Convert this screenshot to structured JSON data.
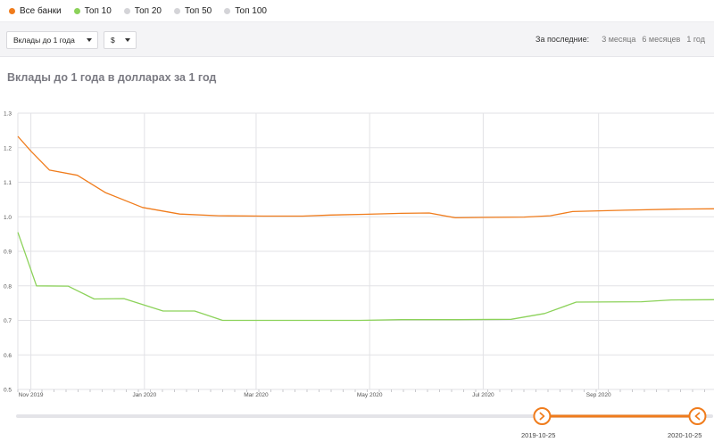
{
  "legend": [
    {
      "label": "Все банки",
      "color": "#f07c1c"
    },
    {
      "label": "Топ 10",
      "color": "#8cd25a"
    },
    {
      "label": "Топ 20",
      "color": "#d4d4d8"
    },
    {
      "label": "Топ 50",
      "color": "#d4d4d8"
    },
    {
      "label": "Топ 100",
      "color": "#d4d4d8"
    }
  ],
  "toolbar": {
    "deposit_select": "Вклады до 1 года",
    "currency_select": "$",
    "period_label": "За последние:",
    "period_options": [
      "3 месяца",
      "6 месяцев",
      "1 год"
    ]
  },
  "chart_title": "Вклады до 1 года в долларах за 1 год",
  "chart_data": {
    "type": "line",
    "title": "Вклады до 1 года в долларах за 1 год",
    "ylim": [
      0.5,
      1.3
    ],
    "y_ticks": [
      "1.3",
      "1.2",
      "1.1",
      "1.0",
      "0.9",
      "0.8",
      "0.7",
      "0.6",
      "0.5"
    ],
    "x_ticks": [
      "Nov 2019",
      "Jan 2020",
      "Mar 2020",
      "May 2020",
      "Jul 2020",
      "Sep 2020"
    ],
    "x_tick_dates": [
      "2019-11-01",
      "2020-01-01",
      "2020-03-01",
      "2020-05-01",
      "2020-07-01",
      "2020-09-01"
    ],
    "x_range": [
      "2019-10-25",
      "2020-11-02"
    ],
    "grid": true,
    "series": [
      {
        "name": "Все банки",
        "color": "#f07c1c",
        "points": [
          [
            "2019-10-25",
            1.233
          ],
          [
            "2019-11-01",
            1.19
          ],
          [
            "2019-11-11",
            1.135
          ],
          [
            "2019-11-26",
            1.12
          ],
          [
            "2019-12-11",
            1.07
          ],
          [
            "2019-12-31",
            1.027
          ],
          [
            "2020-01-20",
            1.008
          ],
          [
            "2020-02-10",
            1.003
          ],
          [
            "2020-03-05",
            1.002
          ],
          [
            "2020-03-26",
            1.002
          ],
          [
            "2020-04-10",
            1.005
          ],
          [
            "2020-04-28",
            1.007
          ],
          [
            "2020-05-18",
            1.01
          ],
          [
            "2020-06-02",
            1.011
          ],
          [
            "2020-06-16",
            0.997
          ],
          [
            "2020-07-01",
            0.998
          ],
          [
            "2020-07-23",
            0.999
          ],
          [
            "2020-08-06",
            1.003
          ],
          [
            "2020-08-18",
            1.015
          ],
          [
            "2020-09-15",
            1.019
          ],
          [
            "2020-10-12",
            1.022
          ],
          [
            "2020-11-02",
            1.023
          ]
        ]
      },
      {
        "name": "Топ 10",
        "color": "#8cd25a",
        "points": [
          [
            "2019-10-25",
            0.955
          ],
          [
            "2019-11-04",
            0.8
          ],
          [
            "2019-11-21",
            0.799
          ],
          [
            "2019-12-05",
            0.762
          ],
          [
            "2019-12-21",
            0.763
          ],
          [
            "2020-01-11",
            0.727
          ],
          [
            "2020-01-28",
            0.727
          ],
          [
            "2020-02-12",
            0.7
          ],
          [
            "2020-03-05",
            0.7
          ],
          [
            "2020-04-26",
            0.7
          ],
          [
            "2020-05-18",
            0.702
          ],
          [
            "2020-06-17",
            0.702
          ],
          [
            "2020-07-16",
            0.703
          ],
          [
            "2020-08-03",
            0.72
          ],
          [
            "2020-08-20",
            0.753
          ],
          [
            "2020-09-24",
            0.754
          ],
          [
            "2020-10-10",
            0.759
          ],
          [
            "2020-11-02",
            0.76
          ]
        ]
      }
    ]
  },
  "range_slider": {
    "start_label": "2019-10-25",
    "end_label": "2020-10-25",
    "start_fraction": 0.756,
    "end_fraction": 0.98,
    "accent_color": "#f07c1c"
  }
}
